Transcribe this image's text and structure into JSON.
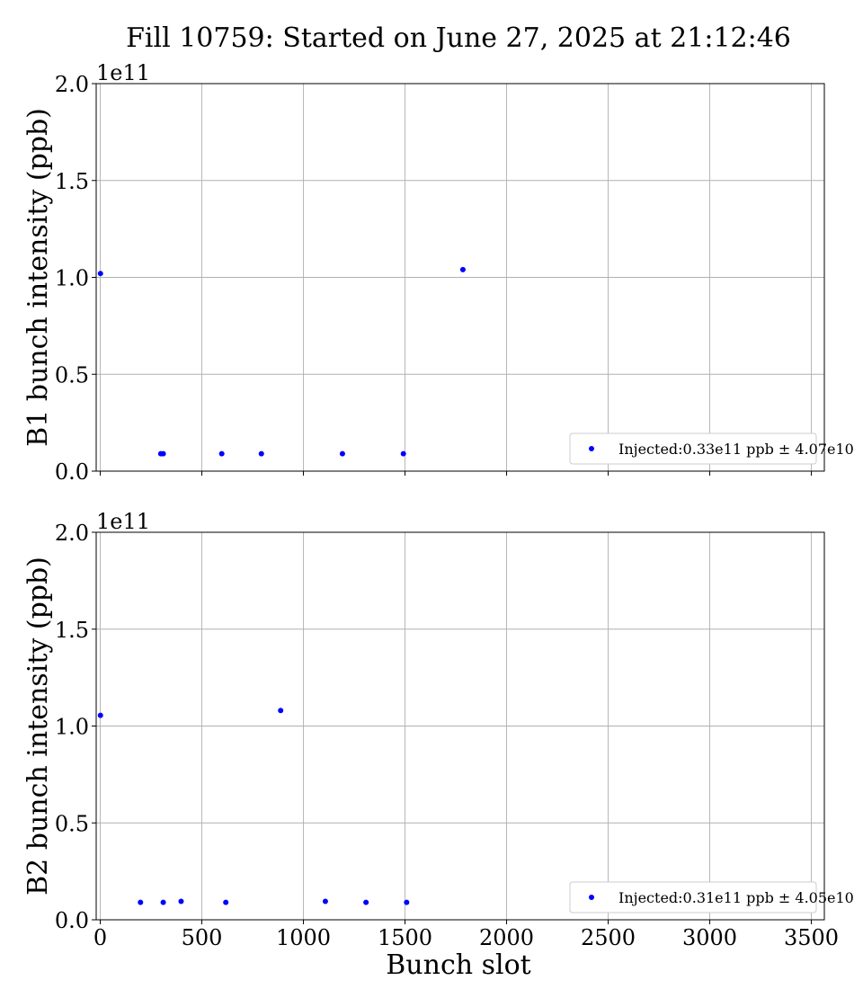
{
  "figure": {
    "title": "Fill 10759: Started on June 27, 2025 at 21:12:46",
    "xlabel": "Bunch slot"
  },
  "colors": {
    "marker": "#0000ff",
    "grid": "#b0b0b0",
    "axis": "#000000",
    "legend_border": "#cccccc"
  },
  "chart_data": [
    {
      "type": "scatter",
      "ylabel": "B1 bunch intensity (ppb)",
      "y_offset_label": "1e11",
      "xlim": [
        -20,
        3564
      ],
      "ylim": [
        0,
        2.0
      ],
      "x_ticks": [
        0,
        500,
        1000,
        1500,
        2000,
        2500,
        3000,
        3500
      ],
      "x_tick_labels_visible": false,
      "y_ticks": [
        0.0,
        0.5,
        1.0,
        1.5,
        2.0
      ],
      "y_tick_labels": [
        "0.0",
        "0.5",
        "1.0",
        "1.5",
        "2.0"
      ],
      "grid": true,
      "legend_placement": "lower-right",
      "series": [
        {
          "name": "Injected:0.33e11 ppb ± 4.07e10",
          "points": [
            {
              "x": 1,
              "y": 1.02
            },
            {
              "x": 298,
              "y": 0.09
            },
            {
              "x": 310,
              "y": 0.09
            },
            {
              "x": 598,
              "y": 0.09
            },
            {
              "x": 793,
              "y": 0.09
            },
            {
              "x": 1192,
              "y": 0.09
            },
            {
              "x": 1492,
              "y": 0.09
            },
            {
              "x": 1785,
              "y": 1.04
            }
          ]
        }
      ]
    },
    {
      "type": "scatter",
      "ylabel": "B2 bunch intensity (ppb)",
      "y_offset_label": "1e11",
      "xlim": [
        -20,
        3564
      ],
      "ylim": [
        0,
        2.0
      ],
      "x_ticks": [
        0,
        500,
        1000,
        1500,
        2000,
        2500,
        3000,
        3500
      ],
      "x_tick_labels": [
        "0",
        "500",
        "1000",
        "1500",
        "2000",
        "2500",
        "3000",
        "3500"
      ],
      "x_tick_labels_visible": true,
      "y_ticks": [
        0.0,
        0.5,
        1.0,
        1.5,
        2.0
      ],
      "y_tick_labels": [
        "0.0",
        "0.5",
        "1.0",
        "1.5",
        "2.0"
      ],
      "grid": true,
      "legend_placement": "lower-right",
      "series": [
        {
          "name": "Injected:0.31e11 ppb ± 4.05e10",
          "points": [
            {
              "x": 1,
              "y": 1.055
            },
            {
              "x": 198,
              "y": 0.09
            },
            {
              "x": 310,
              "y": 0.09
            },
            {
              "x": 398,
              "y": 0.095
            },
            {
              "x": 618,
              "y": 0.09
            },
            {
              "x": 888,
              "y": 1.08
            },
            {
              "x": 1108,
              "y": 0.095
            },
            {
              "x": 1308,
              "y": 0.09
            },
            {
              "x": 1508,
              "y": 0.09
            }
          ]
        }
      ]
    }
  ]
}
